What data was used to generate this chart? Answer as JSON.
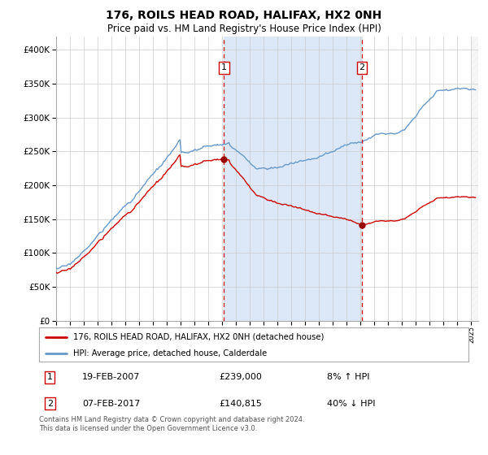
{
  "title": "176, ROILS HEAD ROAD, HALIFAX, HX2 0NH",
  "subtitle": "Price paid vs. HM Land Registry's House Price Index (HPI)",
  "legend_label_red": "176, ROILS HEAD ROAD, HALIFAX, HX2 0NH (detached house)",
  "legend_label_blue": "HPI: Average price, detached house, Calderdale",
  "footnote": "Contains HM Land Registry data © Crown copyright and database right 2024.\nThis data is licensed under the Open Government Licence v3.0.",
  "transaction1_date": "19-FEB-2007",
  "transaction1_price": "£239,000",
  "transaction1_hpi": "8% ↑ HPI",
  "transaction2_date": "07-FEB-2017",
  "transaction2_price": "£140,815",
  "transaction2_hpi": "40% ↓ HPI",
  "sale1_year": 2007.13,
  "sale1_price": 239000,
  "sale2_year": 2017.1,
  "sale2_price": 140815,
  "ylim_min": 0,
  "ylim_max": 420000,
  "xlim_start": 1995,
  "xlim_end": 2025.5,
  "background_color": "#ffffff",
  "plot_bg_color": "#ffffff",
  "shade_color": "#dce8f8",
  "red_color": "#cc0000",
  "blue_color": "#6699cc",
  "grid_color": "#cccccc",
  "dashed_line_color": "#cc0000",
  "marker_color": "#990000",
  "box_edge_color": "#cc0000",
  "hatch_color": "#cccccc"
}
